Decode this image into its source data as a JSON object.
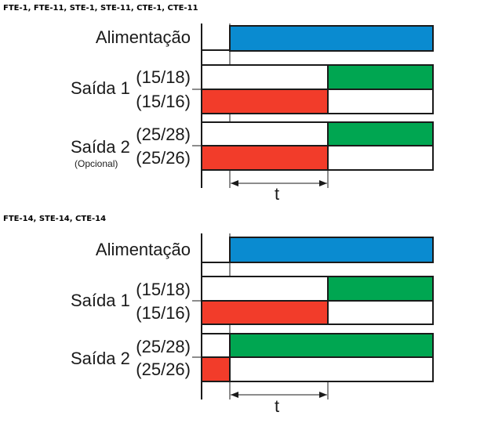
{
  "diagram1": {
    "header": "FTE-1, FTE-11, STE-1, STE-11, CTE-1, CTE-11",
    "power_label": "Alimentação",
    "out1_label": "Saída 1",
    "out1_contact_no": "(15/18)",
    "out1_contact_nc": "(15/16)",
    "out2_label": "Saída 2",
    "out2_note": "(Opcional)",
    "out2_contact_no": "(25/28)",
    "out2_contact_nc": "(25/26)",
    "time_label": "t",
    "colors": {
      "power": "#0a8bd0",
      "on": "#00a651",
      "off": "#f23c2a"
    }
  },
  "diagram2": {
    "header": "FTE-14, STE-14, CTE-14",
    "power_label": "Alimentação",
    "out1_label": "Saída 1",
    "out1_contact_no": "(15/18)",
    "out1_contact_nc": "(15/16)",
    "out2_label": "Saída 2",
    "out2_contact_no": "(25/28)",
    "out2_contact_nc": "(25/26)",
    "time_label": "t",
    "colors": {
      "power": "#0a8bd0",
      "on": "#00a651",
      "off": "#f23c2a"
    }
  }
}
